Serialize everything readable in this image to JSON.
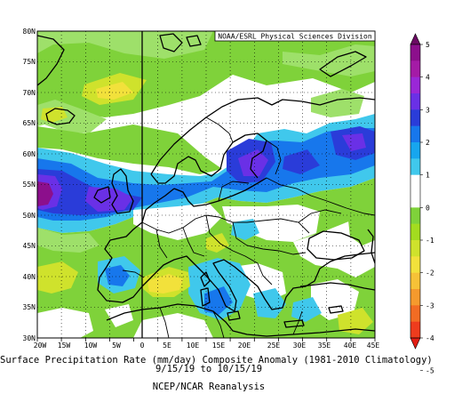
{
  "credit": "NOAA/ESRL Physical Sciences Division",
  "caption": {
    "line1": "Surface Precipitation Rate (mm/day) Composite Anomaly (1981-2010 Climatology)",
    "line2": "9/15/19 to 10/15/19",
    "line3": "NCEP/NCAR Reanalysis"
  },
  "axes": {
    "lon_labels": [
      "20W",
      "15W",
      "10W",
      "5W",
      "0",
      "5E",
      "10E",
      "15E",
      "20E",
      "25E",
      "30E",
      "35E",
      "40E",
      "45E"
    ],
    "lat_labels": [
      "30N",
      "35N",
      "40N",
      "45N",
      "50N",
      "55N",
      "60N",
      "65N",
      "70N",
      "75N",
      "80N"
    ]
  },
  "colorbar": {
    "labels": [
      "5",
      "4",
      "3",
      "2",
      "1",
      "0",
      "-1",
      "-2",
      "-3",
      "-4",
      "-5"
    ],
    "colors": [
      "#6b0a63",
      "#8c0f8c",
      "#a41ba6",
      "#9a27d7",
      "#6a30e6",
      "#2a3cd9",
      "#1777ec",
      "#17a6ee",
      "#40c8ec",
      "#ffffff",
      "#ffffff",
      "#7fd23a",
      "#a3dc1f",
      "#cfe22c",
      "#f2e13b",
      "#f6c237",
      "#f59a2d",
      "#f26c23",
      "#ee3c1d",
      "#e21d14"
    ]
  },
  "anomaly_colors": {
    "white": "#ffffff",
    "green_light": "#9ee06a",
    "green": "#7fd23a",
    "yellow_green": "#cfe22c",
    "yellow": "#f2e13b",
    "light_blue": "#40c8ec",
    "blue": "#1777ec",
    "dark_blue": "#2a3cd9",
    "violet": "#6a30e6",
    "purple": "#8c0f8c"
  }
}
